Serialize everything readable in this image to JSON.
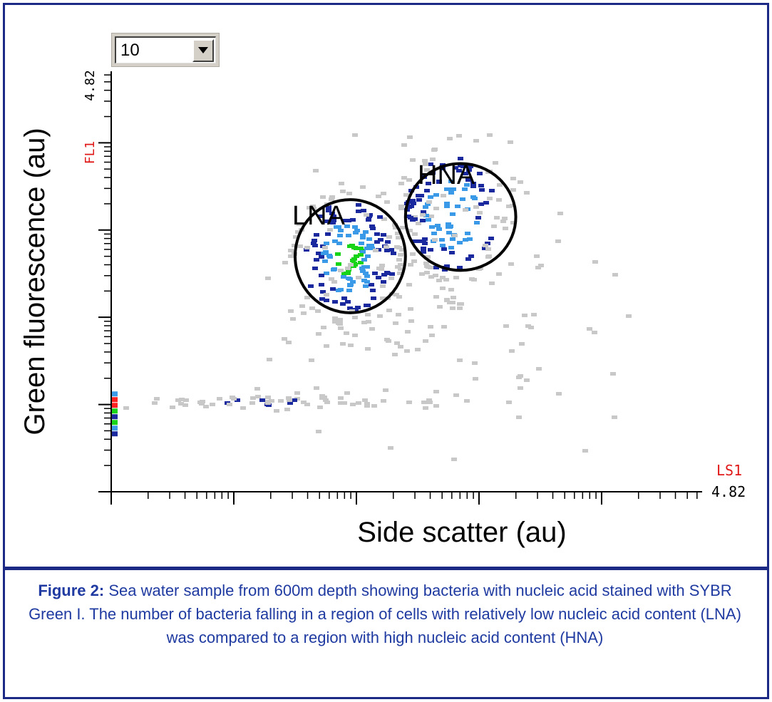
{
  "chart_data": {
    "type": "scatter",
    "subtype": "flow-cytometry density dot plot",
    "xlabel": "Side scatter (au)",
    "ylabel": "Green fluorescence (au)",
    "x_channel": "LS1",
    "y_channel": "FL1",
    "x_max_label": "4.82",
    "y_max_label": "4.82",
    "scale": "log",
    "grid": false,
    "regions": [
      {
        "label": "LNA",
        "cx": 1.95,
        "cy": 2.7,
        "rx": 0.45,
        "ry": 0.9
      },
      {
        "label": "HNA",
        "cx": 2.85,
        "cy": 3.15,
        "rx": 0.45,
        "ry": 0.85
      }
    ],
    "clusters": [
      {
        "name": "LNA",
        "cx": 1.92,
        "cy": 2.7,
        "sx": 0.25,
        "sy": 0.45,
        "n": 220
      },
      {
        "name": "HNA",
        "cx": 2.75,
        "cy": 3.2,
        "sx": 0.25,
        "sy": 0.45,
        "n": 170
      },
      {
        "name": "baseline",
        "cx": 1.3,
        "cy": 1.05,
        "sx": 0.75,
        "sy": 0.05,
        "n": 70
      },
      {
        "name": "diffuse",
        "cx": 2.6,
        "cy": 2.3,
        "sx": 0.7,
        "sy": 0.75,
        "n": 110
      }
    ],
    "density_colors": [
      "#c8c8c8",
      "#1a2a9e",
      "#3a9ae8",
      "#18d418",
      "#ff2020"
    ]
  },
  "dropdown": {
    "value": "10"
  },
  "labels": {
    "lna": "LNA",
    "hna": "HNA"
  },
  "caption": {
    "label": "Figure 2:",
    "text": " Sea water sample from 600m depth showing bacteria with nucleic acid stained with SYBR Green I. The number of bacteria falling in a region of cells with relatively low nucleic acid content (LNA) was compared to a region with high nucleic acid content (HNA)"
  },
  "colors": {
    "frame": "#1c2a86",
    "caption": "#1f3aa0",
    "channel": "#e01818"
  }
}
